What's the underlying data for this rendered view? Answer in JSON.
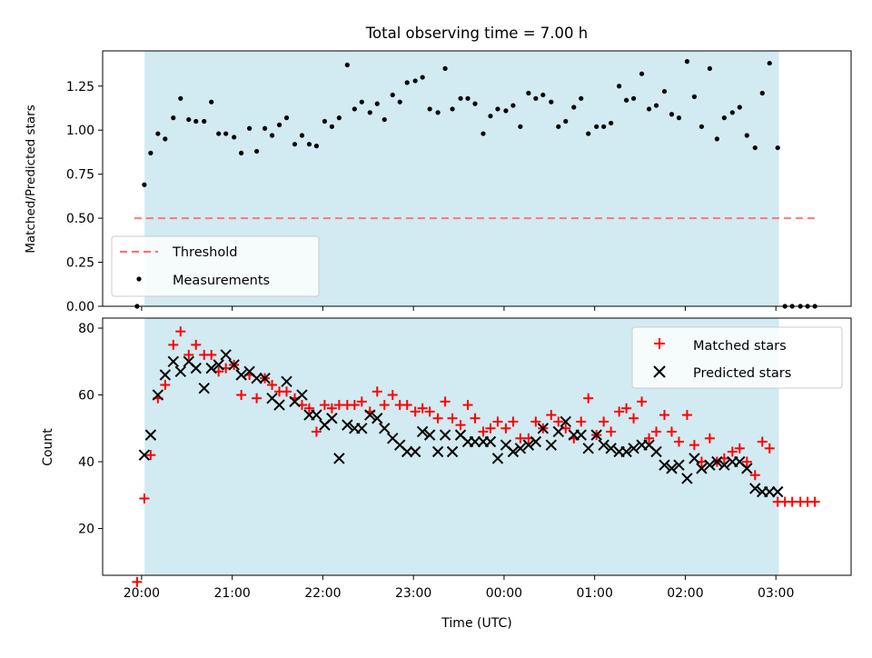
{
  "title": "Total observing time = 7.00 h",
  "colors": {
    "shade": "#add8e6",
    "threshold": "#ff6b6b",
    "measurement": "#000000",
    "matched": "#ff0000",
    "predicted": "#000000"
  },
  "chart_data": [
    {
      "type": "scatter",
      "panel": "top",
      "title": "Total observing time = 7.00 h",
      "ylabel": "Matched/Predicted stars",
      "ylim": [
        0,
        1.45
      ],
      "yticks": [
        "0.00",
        "0.25",
        "0.50",
        "0.75",
        "1.00",
        "1.25"
      ],
      "shaded_interval": [
        0.033,
        7.033
      ],
      "threshold": {
        "name": "Threshold",
        "y": 0.5,
        "x": [
          -0.08,
          7.45
        ]
      },
      "legend": {
        "placement": "lower-left",
        "entries": [
          "Threshold",
          "Measurements"
        ]
      },
      "series": [
        {
          "name": "Measurements",
          "x": [
            -0.05,
            0.03,
            0.1,
            0.18,
            0.26,
            0.35,
            0.43,
            0.52,
            0.6,
            0.69,
            0.77,
            0.85,
            0.93,
            1.02,
            1.1,
            1.19,
            1.27,
            1.36,
            1.44,
            1.52,
            1.6,
            1.69,
            1.77,
            1.85,
            1.93,
            2.02,
            2.1,
            2.18,
            2.27,
            2.35,
            2.43,
            2.52,
            2.6,
            2.68,
            2.77,
            2.85,
            2.93,
            3.02,
            3.1,
            3.18,
            3.27,
            3.35,
            3.43,
            3.52,
            3.6,
            3.68,
            3.77,
            3.85,
            3.93,
            4.02,
            4.1,
            4.18,
            4.27,
            4.35,
            4.43,
            4.52,
            4.6,
            4.68,
            4.77,
            4.85,
            4.93,
            5.02,
            5.1,
            5.18,
            5.27,
            5.35,
            5.43,
            5.52,
            5.6,
            5.68,
            5.77,
            5.85,
            5.93,
            6.02,
            6.1,
            6.18,
            6.27,
            6.35,
            6.43,
            6.52,
            6.6,
            6.68,
            6.77,
            6.85,
            6.93,
            7.02,
            7.1,
            7.18,
            7.27,
            7.35,
            7.43
          ],
          "y": [
            0.0,
            0.69,
            0.87,
            0.98,
            0.95,
            1.07,
            1.18,
            1.06,
            1.05,
            1.05,
            1.16,
            0.98,
            0.98,
            0.96,
            0.87,
            1.01,
            0.88,
            1.01,
            0.97,
            1.03,
            1.07,
            0.92,
            0.97,
            0.92,
            0.91,
            1.05,
            1.02,
            1.07,
            1.37,
            1.12,
            1.16,
            1.1,
            1.15,
            1.06,
            1.2,
            1.16,
            1.27,
            1.28,
            1.3,
            1.12,
            1.1,
            1.35,
            1.12,
            1.18,
            1.18,
            1.15,
            0.98,
            1.08,
            1.12,
            1.11,
            1.14,
            1.02,
            1.21,
            1.18,
            1.2,
            1.16,
            1.02,
            1.05,
            1.13,
            1.18,
            0.98,
            1.02,
            1.02,
            1.04,
            1.25,
            1.17,
            1.18,
            1.32,
            1.12,
            1.14,
            1.22,
            1.09,
            1.07,
            1.39,
            1.19,
            1.02,
            1.35,
            0.95,
            1.07,
            1.1,
            1.13,
            0.97,
            0.9,
            1.21,
            1.38,
            0.9,
            0.0,
            0.0,
            0.0,
            0.0,
            0.0
          ]
        }
      ]
    },
    {
      "type": "scatter",
      "panel": "bottom",
      "xlabel": "Time (UTC)",
      "ylabel": "Count",
      "ylim": [
        6,
        83
      ],
      "xlim": [
        -0.43,
        7.83
      ],
      "yticks": [
        "20",
        "40",
        "60",
        "80"
      ],
      "xticks": [
        "20:00",
        "21:00",
        "22:00",
        "23:00",
        "00:00",
        "01:00",
        "02:00",
        "03:00"
      ],
      "shaded_interval": [
        0.033,
        7.033
      ],
      "legend": {
        "placement": "top-right",
        "entries": [
          "Matched stars",
          "Predicted stars"
        ]
      },
      "series": [
        {
          "name": "Matched stars",
          "marker": "plus",
          "x": [
            -0.05,
            0.03,
            0.1,
            0.18,
            0.26,
            0.35,
            0.43,
            0.52,
            0.6,
            0.69,
            0.77,
            0.85,
            0.93,
            1.02,
            1.1,
            1.19,
            1.27,
            1.36,
            1.44,
            1.52,
            1.6,
            1.69,
            1.77,
            1.85,
            1.93,
            2.02,
            2.1,
            2.18,
            2.27,
            2.35,
            2.43,
            2.52,
            2.6,
            2.68,
            2.77,
            2.85,
            2.93,
            3.02,
            3.1,
            3.18,
            3.27,
            3.35,
            3.43,
            3.52,
            3.6,
            3.68,
            3.77,
            3.85,
            3.93,
            4.02,
            4.1,
            4.18,
            4.27,
            4.35,
            4.43,
            4.52,
            4.6,
            4.68,
            4.77,
            4.85,
            4.93,
            5.02,
            5.1,
            5.18,
            5.27,
            5.35,
            5.43,
            5.52,
            5.6,
            5.68,
            5.77,
            5.85,
            5.93,
            6.02,
            6.1,
            6.18,
            6.27,
            6.35,
            6.43,
            6.52,
            6.6,
            6.68,
            6.77,
            6.85,
            6.93,
            7.02,
            7.1,
            7.18,
            7.27,
            7.35,
            7.43
          ],
          "y": [
            4,
            29,
            42,
            59,
            63,
            75,
            79,
            72,
            75,
            72,
            72,
            67,
            68,
            69,
            60,
            66,
            59,
            65,
            63,
            61,
            61,
            59,
            57,
            56,
            49,
            57,
            56,
            57,
            57,
            57,
            58,
            55,
            61,
            57,
            60,
            57,
            57,
            55,
            56,
            55,
            53,
            58,
            53,
            51,
            57,
            53,
            49,
            50,
            52,
            50,
            52,
            47,
            47,
            52,
            50,
            54,
            52,
            50,
            47,
            52,
            59,
            48,
            52,
            49,
            55,
            56,
            53,
            58,
            47,
            49,
            54,
            49,
            46,
            54,
            45,
            40,
            47,
            40,
            41,
            43,
            44,
            40,
            36,
            46,
            44,
            28,
            28,
            28,
            28,
            28,
            28
          ]
        },
        {
          "name": "Predicted stars",
          "marker": "x",
          "x": [
            0.03,
            0.1,
            0.18,
            0.26,
            0.35,
            0.43,
            0.52,
            0.6,
            0.69,
            0.77,
            0.85,
            0.93,
            1.02,
            1.1,
            1.19,
            1.27,
            1.36,
            1.44,
            1.52,
            1.6,
            1.69,
            1.77,
            1.85,
            1.93,
            2.02,
            2.1,
            2.18,
            2.27,
            2.35,
            2.43,
            2.52,
            2.6,
            2.68,
            2.77,
            2.85,
            2.93,
            3.02,
            3.1,
            3.18,
            3.27,
            3.35,
            3.43,
            3.52,
            3.6,
            3.68,
            3.77,
            3.85,
            3.93,
            4.02,
            4.1,
            4.18,
            4.27,
            4.35,
            4.43,
            4.52,
            4.6,
            4.68,
            4.77,
            4.85,
            4.93,
            5.02,
            5.1,
            5.18,
            5.27,
            5.35,
            5.43,
            5.52,
            5.6,
            5.68,
            5.77,
            5.85,
            5.93,
            6.02,
            6.1,
            6.18,
            6.27,
            6.35,
            6.43,
            6.52,
            6.6,
            6.68,
            6.77,
            6.85,
            6.93,
            7.02
          ],
          "y": [
            42,
            48,
            60,
            66,
            70,
            67,
            70,
            68,
            62,
            68,
            69,
            72,
            69,
            66,
            67,
            65,
            65,
            59,
            57,
            64,
            58,
            60,
            54,
            54,
            51,
            53,
            41,
            51,
            50,
            50,
            54,
            53,
            50,
            47,
            45,
            43,
            43,
            49,
            48,
            43,
            48,
            43,
            48,
            46,
            46,
            46,
            46,
            41,
            45,
            43,
            44,
            45,
            46,
            50,
            45,
            49,
            52,
            48,
            48,
            44,
            48,
            45,
            44,
            43,
            43,
            44,
            45,
            45,
            43,
            39,
            38,
            39,
            35,
            41,
            38,
            39,
            40,
            39,
            40,
            40,
            38,
            32,
            31,
            31,
            31
          ]
        }
      ]
    }
  ]
}
